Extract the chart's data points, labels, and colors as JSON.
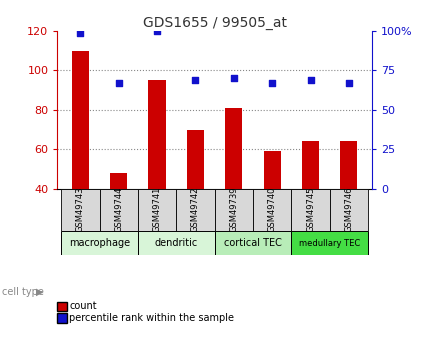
{
  "title": "GDS1655 / 99505_at",
  "samples": [
    "GSM49743",
    "GSM49744",
    "GSM49741",
    "GSM49742",
    "GSM49739",
    "GSM49740",
    "GSM49745",
    "GSM49746"
  ],
  "counts": [
    110,
    48,
    95,
    70,
    81,
    59,
    64,
    64
  ],
  "percentiles": [
    99,
    67,
    100,
    69,
    70,
    67,
    69,
    67
  ],
  "cell_types": [
    {
      "label": "macrophage",
      "start": 0,
      "end": 2,
      "color": "#d8f5d8"
    },
    {
      "label": "dendritic",
      "start": 2,
      "end": 4,
      "color": "#d8f5d8"
    },
    {
      "label": "cortical TEC",
      "start": 4,
      "end": 6,
      "color": "#b8edb8"
    },
    {
      "label": "medullary TEC",
      "start": 6,
      "end": 8,
      "color": "#44dd44"
    }
  ],
  "ylim_left": [
    40,
    120
  ],
  "ylim_right": [
    0,
    100
  ],
  "yticks_left": [
    40,
    60,
    80,
    100,
    120
  ],
  "yticks_right": [
    0,
    25,
    50,
    75,
    100
  ],
  "ytick_labels_right": [
    "0",
    "25",
    "50",
    "75",
    "100%"
  ],
  "bar_color": "#cc0000",
  "dot_color": "#1111cc",
  "grid_color": "#888888",
  "title_color": "#333333",
  "left_tick_color": "#cc0000",
  "right_tick_color": "#1111cc",
  "legend_items": [
    "count",
    "percentile rank within the sample"
  ],
  "legend_colors": [
    "#cc0000",
    "#1111cc"
  ],
  "bar_width": 0.45,
  "dot_size": 25
}
